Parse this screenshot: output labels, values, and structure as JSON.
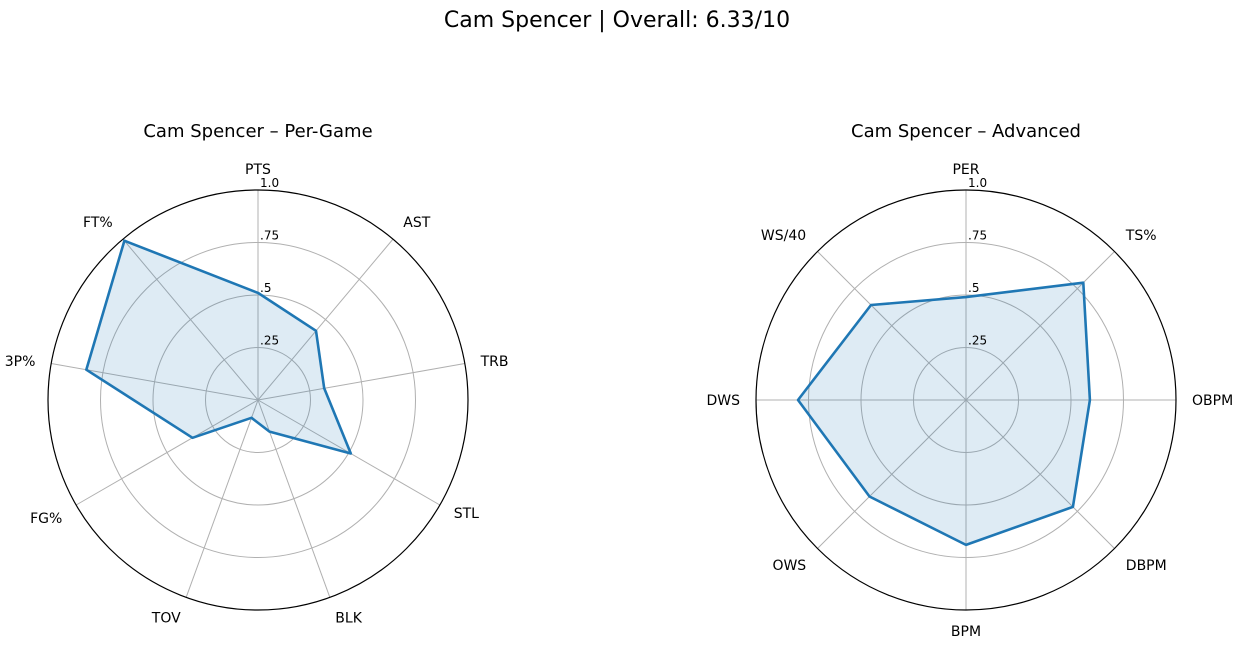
{
  "suptitle": "Cam Spencer | Overall: 6.33/10",
  "chart_data": [
    {
      "type": "radar",
      "title": "Cam Spencer – Per-Game",
      "categories": [
        "PTS",
        "AST",
        "TRB",
        "STL",
        "BLK",
        "TOV",
        "FG%",
        "3P%",
        "FT%"
      ],
      "values": [
        0.51,
        0.43,
        0.32,
        0.51,
        0.16,
        0.09,
        0.36,
        0.83,
        0.99
      ],
      "rlim": [
        0,
        1.0
      ],
      "rticks": [
        0.25,
        0.5,
        0.75,
        1.0
      ],
      "rtick_labels": [
        ".25",
        ".5",
        ".75",
        "1.0"
      ],
      "grid": true,
      "color": "#1f77b4"
    },
    {
      "type": "radar",
      "title": "Cam Spencer – Advanced",
      "categories": [
        "PER",
        "TS%",
        "OBPM",
        "DBPM",
        "BPM",
        "OWS",
        "DWS",
        "WS/40"
      ],
      "values": [
        0.49,
        0.79,
        0.59,
        0.72,
        0.69,
        0.65,
        0.8,
        0.64
      ],
      "rlim": [
        0,
        1.0
      ],
      "rticks": [
        0.25,
        0.5,
        0.75,
        1.0
      ],
      "rtick_labels": [
        ".25",
        ".5",
        ".75",
        "1.0"
      ],
      "grid": true,
      "color": "#1f77b4"
    }
  ]
}
